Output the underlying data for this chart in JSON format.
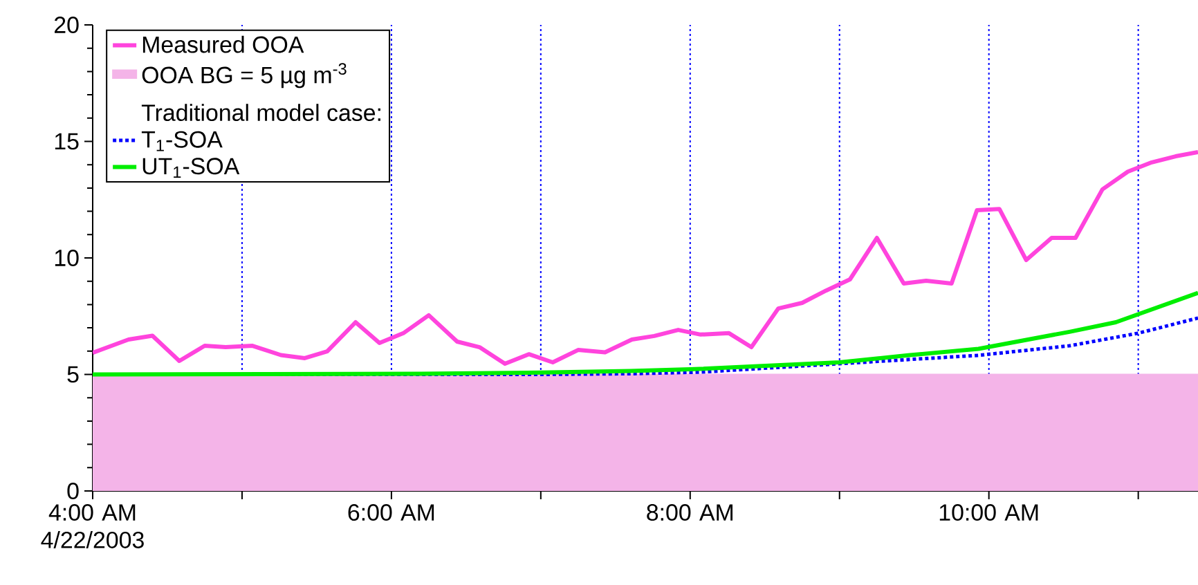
{
  "chart_data": {
    "type": "line",
    "x": [
      4.0,
      4.24,
      4.4,
      4.58,
      4.75,
      4.89,
      5.07,
      5.26,
      5.42,
      5.57,
      5.76,
      5.92,
      6.08,
      6.25,
      6.44,
      6.59,
      6.76,
      6.92,
      7.08,
      7.25,
      7.43,
      7.61,
      7.76,
      7.92,
      8.07,
      8.26,
      8.41,
      8.59,
      8.75,
      8.91,
      9.07,
      9.25,
      9.43,
      9.58,
      9.75,
      9.92,
      10.07,
      10.25,
      10.42,
      10.58,
      10.76,
      10.93,
      11.09,
      11.25,
      11.4
    ],
    "series": [
      {
        "name": "Measured OOA",
        "color": "#ff44dd",
        "line_style": "solid",
        "values": [
          5.93,
          6.5,
          6.66,
          5.58,
          6.23,
          6.17,
          6.23,
          5.83,
          5.7,
          5.99,
          7.24,
          6.35,
          6.77,
          7.54,
          6.41,
          6.17,
          5.46,
          5.87,
          5.52,
          6.05,
          5.95,
          6.5,
          6.65,
          6.91,
          6.71,
          6.77,
          6.17,
          7.83,
          8.07,
          8.6,
          9.08,
          10.86,
          8.9,
          9.02,
          8.9,
          12.05,
          12.1,
          9.91,
          10.86,
          10.86,
          12.94,
          13.7,
          14.1,
          14.36,
          14.54
        ]
      },
      {
        "name": "T$_{1}$-SOA",
        "color": "#0000ff",
        "line_style": "dotted",
        "x": [
          4.0,
          7.0,
          7.6,
          8.07,
          9.0,
          9.93,
          10.54,
          11.0,
          11.4
        ],
        "values": [
          5.0,
          5.0,
          5.03,
          5.1,
          5.46,
          5.82,
          6.23,
          6.77,
          7.42
        ]
      },
      {
        "name": "UT$_{1}$-SOA",
        "color": "#00ee00",
        "line_style": "solid",
        "x": [
          4.0,
          6.2,
          7.0,
          7.6,
          8.0,
          9.0,
          9.46,
          9.93,
          10.54,
          10.85,
          11.4
        ],
        "values": [
          5.0,
          5.03,
          5.08,
          5.15,
          5.22,
          5.52,
          5.82,
          6.1,
          6.83,
          7.24,
          8.5
        ]
      }
    ],
    "bands": [
      {
        "axis": "y",
        "from": 0,
        "to": 5,
        "label": "OOA BG = 5 µg m$^{-3}$",
        "color": "#f4b4e8"
      }
    ],
    "annotations": [
      "Traditional model case:"
    ],
    "xlim": [
      4,
      11.4
    ],
    "ylim": [
      0,
      20
    ],
    "xticks": [
      {
        "value": 4,
        "label": "4:00 AM 4/22/2003"
      },
      {
        "value": 5,
        "label": null
      },
      {
        "value": 6,
        "label": "6:00 AM"
      },
      {
        "value": 7,
        "label": null
      },
      {
        "value": 8,
        "label": "8:00 AM"
      },
      {
        "value": 9,
        "label": null
      },
      {
        "value": 10,
        "label": "10:00 AM"
      },
      {
        "value": 11,
        "label": null
      }
    ],
    "yticks": [
      0,
      5,
      10,
      15,
      20
    ],
    "grid": "x",
    "legend": "top left",
    "marker": "none"
  }
}
